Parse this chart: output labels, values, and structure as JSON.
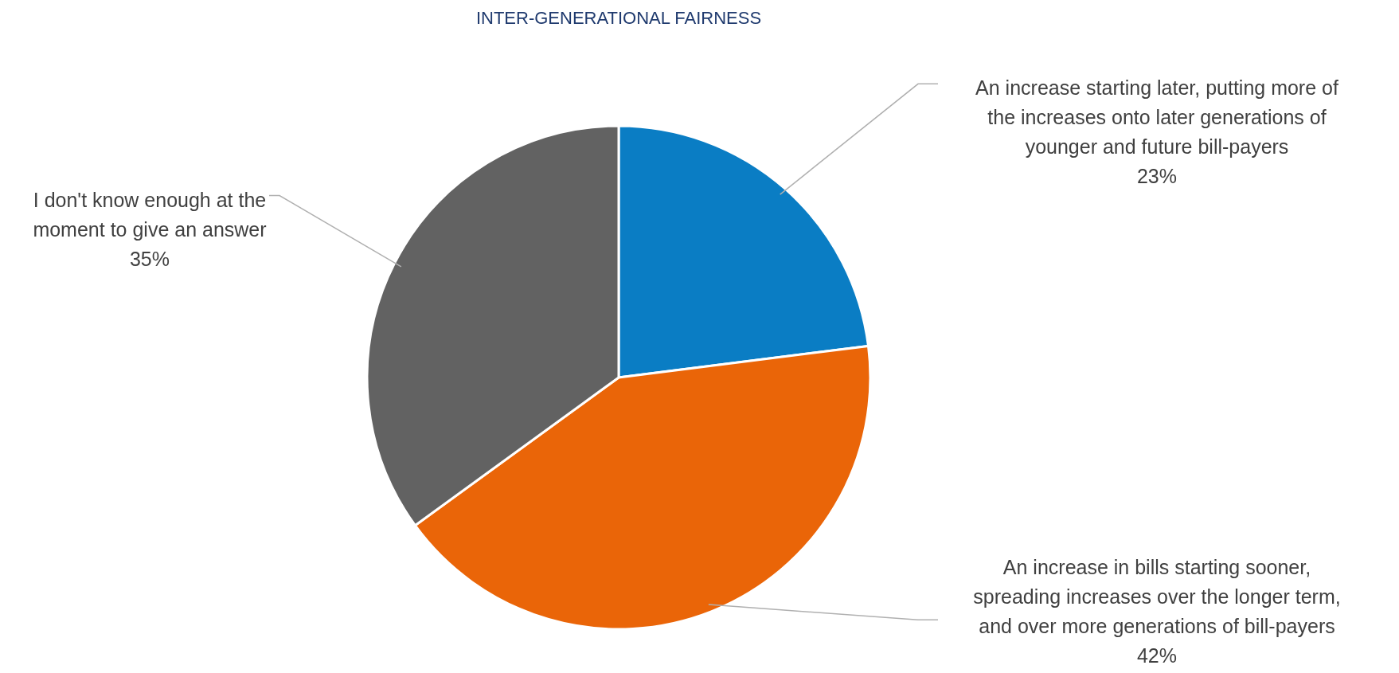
{
  "chart_data": {
    "type": "pie",
    "title": "INTER-GENERATIONAL FAIRNESS",
    "categories": [
      "An increase starting later, putting more of\nthe increases onto later generations of\nyounger and future bill-payers",
      "An increase in bills starting sooner,\nspreading increases over the longer term,\nand over more generations of bill-payers",
      "I don't know enough at the\nmoment to give an answer"
    ],
    "values": [
      23,
      42,
      35
    ],
    "value_labels": [
      "23%",
      "42%",
      "35%"
    ],
    "colors": [
      "#0a7dc4",
      "#ea6508",
      "#626262"
    ]
  }
}
